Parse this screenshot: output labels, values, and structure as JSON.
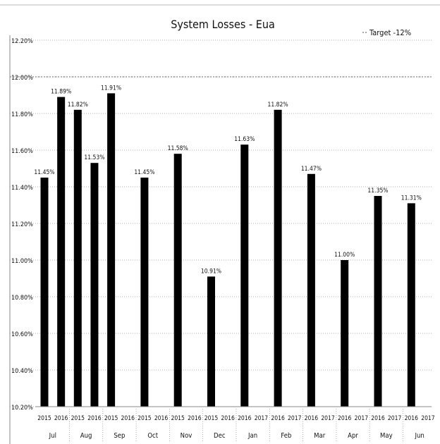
{
  "chart_data": {
    "type": "bar",
    "title": "System Losses - Eua",
    "xlabel": "",
    "ylabel": "",
    "ylim": [
      10.2,
      12.2
    ],
    "yticks": [
      10.2,
      10.4,
      10.6,
      10.8,
      11.0,
      11.2,
      11.4,
      11.6,
      11.8,
      12.0,
      12.2
    ],
    "ytick_labels": [
      "10.20%",
      "10.40%",
      "10.60%",
      "10.80%",
      "11.00%",
      "11.20%",
      "11.40%",
      "11.60%",
      "11.80%",
      "12.00%",
      "12.20%"
    ],
    "grid": true,
    "legend": {
      "entries": [
        "Target -12%"
      ],
      "placement": "top-right"
    },
    "target_line": {
      "label": "Target -12%",
      "value": 12.0
    },
    "months": [
      "Jul",
      "Aug",
      "Sep",
      "Oct",
      "Nov",
      "Dec",
      "Jan",
      "Feb",
      "Mar",
      "Apr",
      "May",
      "Jun"
    ],
    "bars": [
      {
        "month": "Jul",
        "year": "2015",
        "value": 11.45,
        "label": "11.45%"
      },
      {
        "month": "Jul",
        "year": "2016",
        "value": 11.89,
        "label": "11.89%"
      },
      {
        "month": "Aug",
        "year": "2015",
        "value": 11.82,
        "label": "11.82%"
      },
      {
        "month": "Aug",
        "year": "2016",
        "value": 11.53,
        "label": "11.53%"
      },
      {
        "month": "Sep",
        "year": "2015",
        "value": 11.91,
        "label": "11.91%"
      },
      {
        "month": "Sep",
        "year": "2016",
        "value": null,
        "label": ""
      },
      {
        "month": "Oct",
        "year": "2015",
        "value": 11.45,
        "label": "11.45%"
      },
      {
        "month": "Oct",
        "year": "2016",
        "value": null,
        "label": ""
      },
      {
        "month": "Nov",
        "year": "2015",
        "value": 11.58,
        "label": "11.58%"
      },
      {
        "month": "Nov",
        "year": "2016",
        "value": null,
        "label": ""
      },
      {
        "month": "Dec",
        "year": "2015",
        "value": 10.91,
        "label": "10.91%"
      },
      {
        "month": "Dec",
        "year": "2016",
        "value": null,
        "label": ""
      },
      {
        "month": "Jan",
        "year": "2016",
        "value": 11.63,
        "label": "11.63%"
      },
      {
        "month": "Jan",
        "year": "2017",
        "value": null,
        "label": ""
      },
      {
        "month": "Feb",
        "year": "2016",
        "value": 11.82,
        "label": "11.82%"
      },
      {
        "month": "Feb",
        "year": "2017",
        "value": null,
        "label": ""
      },
      {
        "month": "Mar",
        "year": "2016",
        "value": 11.47,
        "label": "11.47%"
      },
      {
        "month": "Mar",
        "year": "2017",
        "value": null,
        "label": ""
      },
      {
        "month": "Apr",
        "year": "2016",
        "value": 11.0,
        "label": "11.00%"
      },
      {
        "month": "Apr",
        "year": "2017",
        "value": null,
        "label": ""
      },
      {
        "month": "May",
        "year": "2016",
        "value": 11.35,
        "label": "11.35%"
      },
      {
        "month": "May",
        "year": "2017",
        "value": null,
        "label": ""
      },
      {
        "month": "Jun",
        "year": "2016",
        "value": 11.31,
        "label": "11.31%"
      },
      {
        "month": "Jun",
        "year": "2017",
        "value": null,
        "label": ""
      }
    ],
    "colors": {
      "bar": "#000000",
      "grid": "#999999",
      "target": "#888888"
    }
  }
}
